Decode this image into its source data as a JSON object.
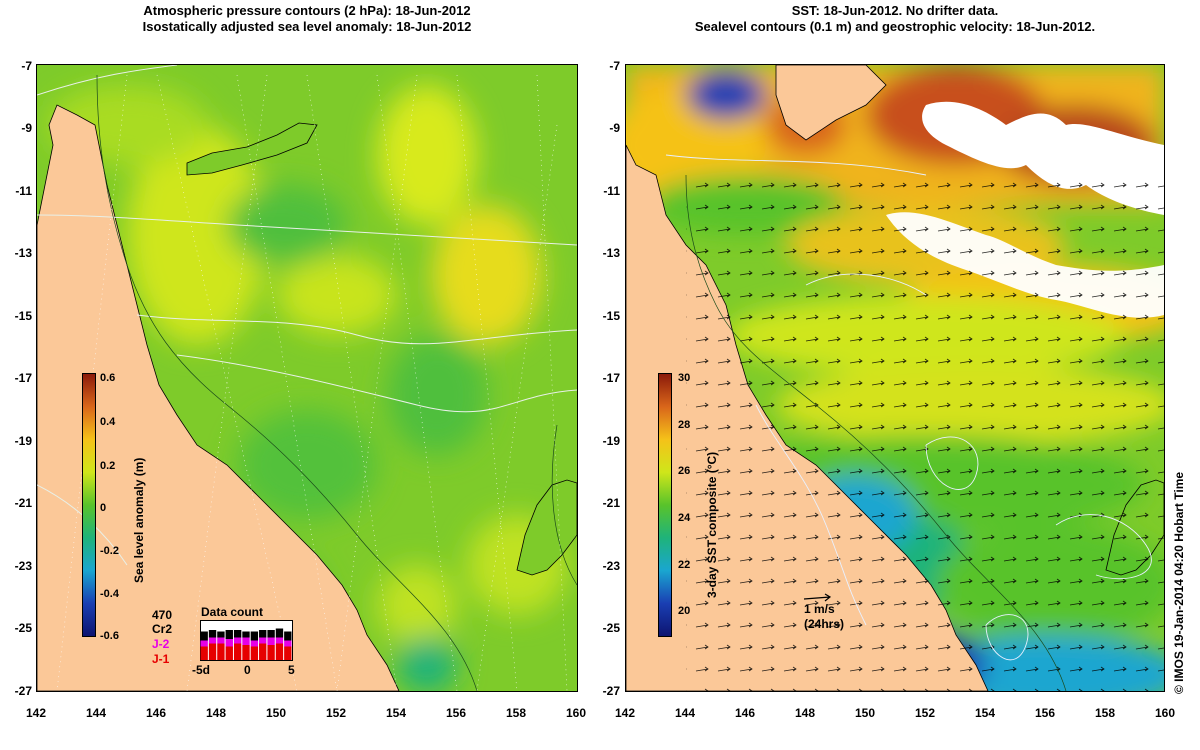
{
  "left_panel": {
    "title_line1": "Atmospheric pressure contours (2 hPa): 18-Jun-2012",
    "title_line2": "Isostatically adjusted sea level anomaly: 18-Jun-2012",
    "colorbar": {
      "label": "Sea level anomaly (m)",
      "ticks": [
        "0.6",
        "0.4",
        "0.2",
        "0",
        "-0.2",
        "-0.4",
        "-0.6"
      ],
      "colors": [
        "#8b1a0a",
        "#d9661a",
        "#f5c219",
        "#cfe61a",
        "#59c32b",
        "#1fb37a",
        "#1aa6d0",
        "#1a3fb3",
        "#0d1470"
      ]
    },
    "satellite_legend": {
      "count": "470",
      "missions": [
        {
          "name": "Cr2",
          "color": "#000000"
        },
        {
          "name": "J-2",
          "color": "#e600e6"
        },
        {
          "name": "J-1",
          "color": "#e60000"
        }
      ]
    },
    "data_count": {
      "title": "Data count",
      "x_ticks": [
        "-5d",
        "0",
        "5"
      ],
      "j1_counts": [
        0.45,
        0.55,
        0.55,
        0.45,
        0.55,
        0.5,
        0.45,
        0.55,
        0.5,
        0.55,
        0.45
      ],
      "j2_counts": [
        0.2,
        0.2,
        0.2,
        0.25,
        0.2,
        0.25,
        0.2,
        0.2,
        0.25,
        0.2,
        0.2
      ],
      "cr2_counts": [
        0.3,
        0.25,
        0.2,
        0.3,
        0.25,
        0.2,
        0.3,
        0.25,
        0.25,
        0.3,
        0.3
      ]
    }
  },
  "right_panel": {
    "title_line1": "SST: 18-Jun-2012. No drifter data.",
    "title_line2": "Sealevel contours (0.1 m) and geostrophic velocity: 18-Jun-2012.",
    "colorbar": {
      "label": "3-day SST composite (°C)",
      "ticks": [
        "30",
        "28",
        "26",
        "24",
        "22",
        "20"
      ],
      "colors": [
        "#8b1a0a",
        "#d9661a",
        "#f5c219",
        "#cfe61a",
        "#59c32b",
        "#1fb37a",
        "#1aa6d0",
        "#1a3fb3",
        "#0d1470"
      ]
    },
    "velocity_scale": {
      "label": "1 m/s",
      "sublabel": "(24hrs)"
    }
  },
  "axes": {
    "y_ticks": [
      "-7",
      "-9",
      "-11",
      "-13",
      "-15",
      "-17",
      "-19",
      "-21",
      "-23",
      "-25",
      "-27"
    ],
    "x_ticks": [
      "142",
      "144",
      "146",
      "148",
      "150",
      "152",
      "154",
      "156",
      "158",
      "160"
    ]
  },
  "credit": "© IMOS 19-Jan-2014 04:20 Hobart Time",
  "colors": {
    "land": "#fbc898",
    "ocean_base": "#7ecb2a",
    "cloud": "#ffffff"
  }
}
